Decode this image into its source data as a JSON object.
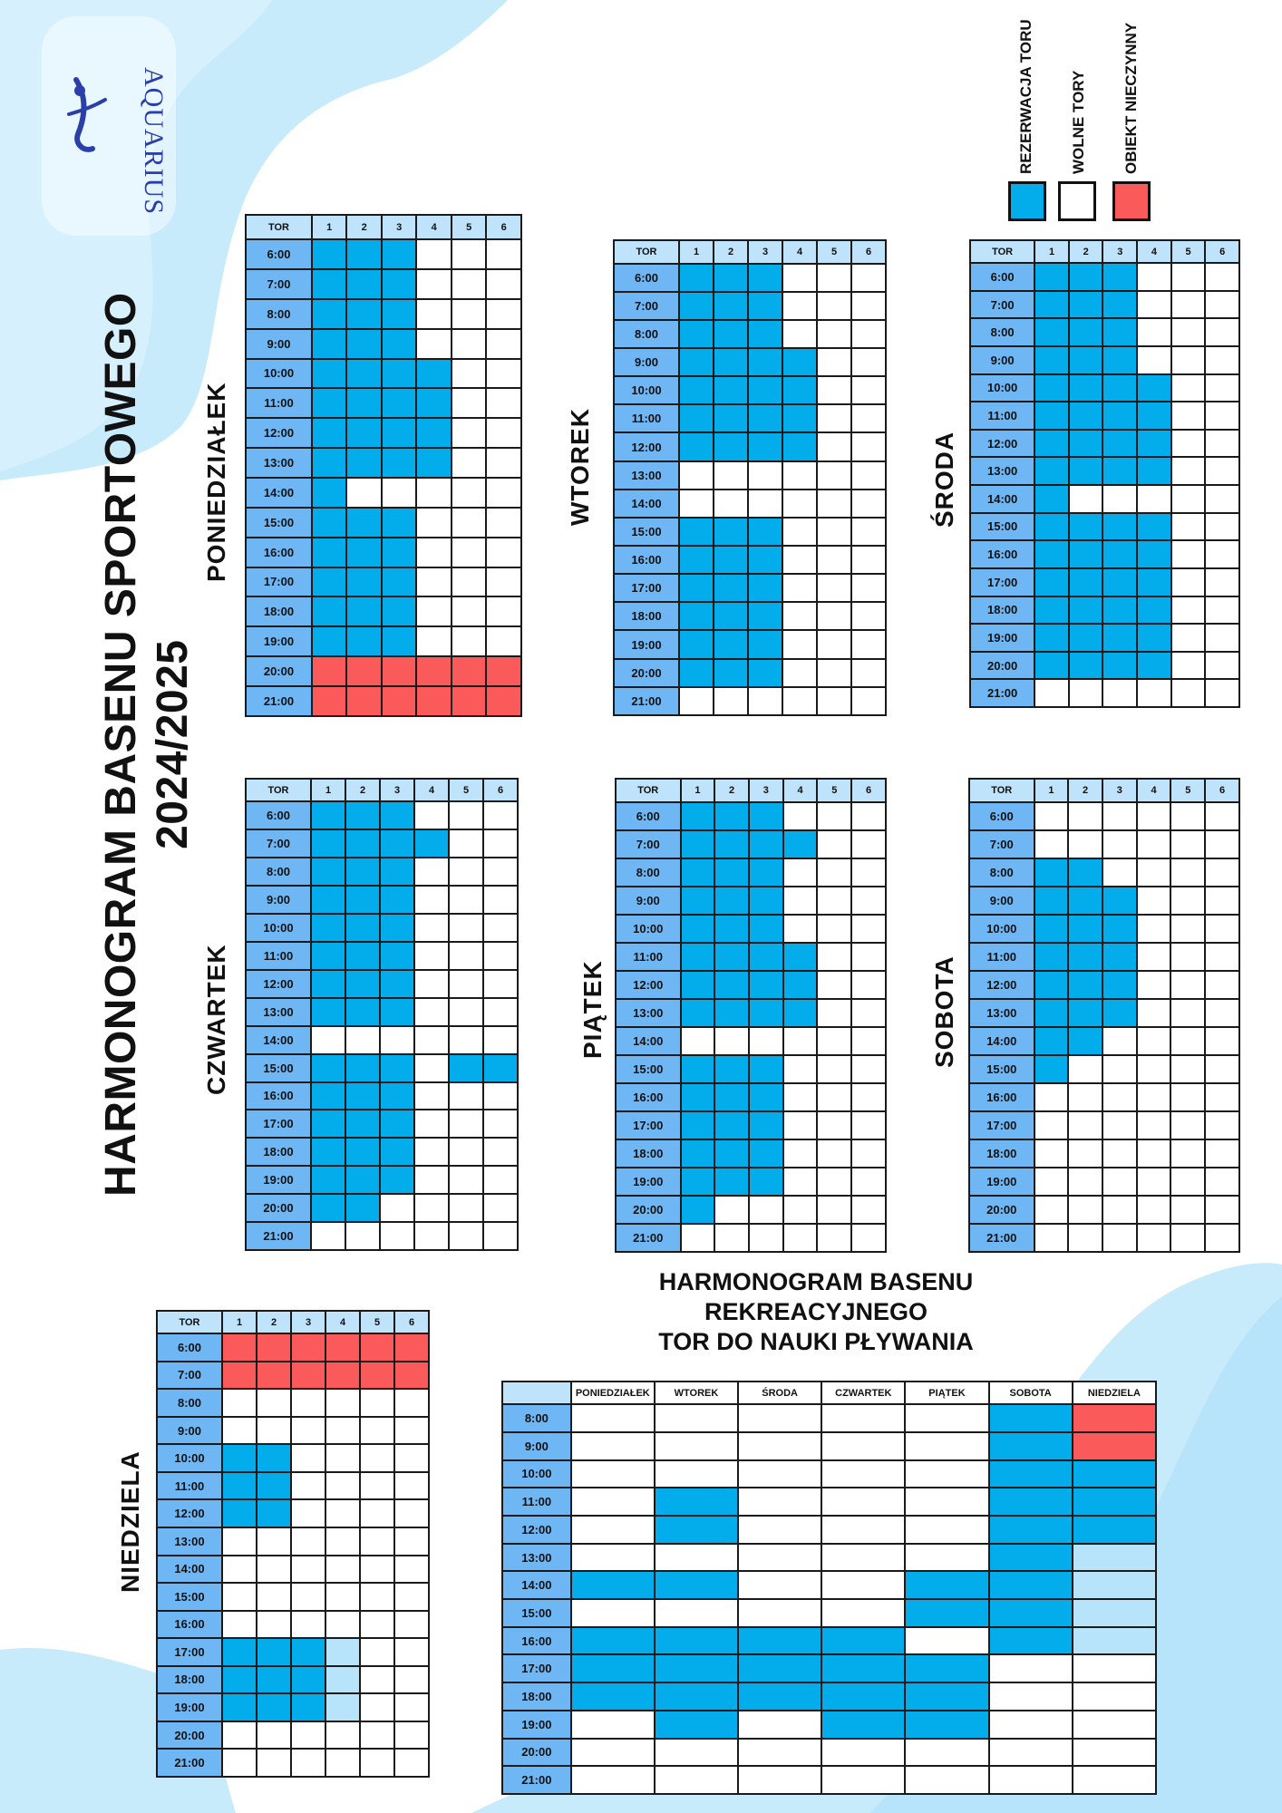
{
  "title": {
    "line1": "HARMONOGRAM  BASENU SPORTOWEGO",
    "line2": "2024/2025"
  },
  "logo": {
    "name": "AQUARIUS",
    "icon": "swimmer-icon"
  },
  "legend": [
    {
      "label": "REZERWACJA TORU",
      "color": "#03aceb"
    },
    {
      "label": "WOLNE TORY",
      "color": "#ffffff"
    },
    {
      "label": "OBIEKT NIECZYNNY",
      "color": "#fb5a5a"
    }
  ],
  "colors": {
    "reserved": "#03aceb",
    "free": "#ffffff",
    "closed": "#fb5a5a",
    "partial": "#b8e4fb",
    "header": "#bfe3fb",
    "time": "#6fb7f4"
  },
  "sport": {
    "header": [
      "TOR",
      "1",
      "2",
      "3",
      "4",
      "5",
      "6"
    ],
    "times": [
      "6:00",
      "7:00",
      "8:00",
      "9:00",
      "10:00",
      "11:00",
      "12:00",
      "13:00",
      "14:00",
      "15:00",
      "16:00",
      "17:00",
      "18:00",
      "19:00",
      "20:00",
      "21:00"
    ],
    "days": [
      {
        "name": "PONIEDZIAŁEK",
        "cells": [
          "111000",
          "111000",
          "111000",
          "111000",
          "111100",
          "111100",
          "111100",
          "111100",
          "100000",
          "111000",
          "111000",
          "111000",
          "111000",
          "111000",
          "222222",
          "222222"
        ]
      },
      {
        "name": "WTOREK",
        "cells": [
          "111000",
          "111000",
          "111000",
          "111100",
          "111100",
          "111100",
          "111100",
          "000000",
          "000000",
          "111000",
          "111000",
          "111000",
          "111000",
          "111000",
          "111000",
          "000000"
        ]
      },
      {
        "name": "ŚRODA",
        "cells": [
          "111000",
          "111000",
          "111000",
          "111000",
          "111100",
          "111100",
          "111100",
          "111100",
          "100000",
          "111100",
          "111100",
          "111100",
          "111100",
          "111100",
          "111100",
          "000000"
        ]
      },
      {
        "name": "CZWARTEK",
        "cells": [
          "111000",
          "111100",
          "111000",
          "111000",
          "111000",
          "111000",
          "111000",
          "111000",
          "000000",
          "111011",
          "111000",
          "111000",
          "111000",
          "111000",
          "110000",
          "000000"
        ]
      },
      {
        "name": "PIĄTEK",
        "cells": [
          "111000",
          "111100",
          "111000",
          "111000",
          "111000",
          "111100",
          "111100",
          "111100",
          "000000",
          "111000",
          "111000",
          "111000",
          "111000",
          "111000",
          "100000",
          "000000"
        ]
      },
      {
        "name": "SOBOTA",
        "cells": [
          "000000",
          "000000",
          "110000",
          "111000",
          "111000",
          "111000",
          "111000",
          "111000",
          "110000",
          "100000",
          "000000",
          "000000",
          "000000",
          "000000",
          "000000",
          "000000"
        ]
      },
      {
        "name": "NIEDZIELA",
        "cells": [
          "222222",
          "222222",
          "000000",
          "000000",
          "110000",
          "110000",
          "110000",
          "000000",
          "000000",
          "000000",
          "000000",
          "111300",
          "111300",
          "111300",
          "000000",
          "000000"
        ]
      }
    ]
  },
  "recreation": {
    "title": [
      "HARMONOGRAM BASENU",
      "REKREACYJNEGO",
      "TOR DO NAUKI PŁYWANIA"
    ],
    "corner": "",
    "days": [
      "PONIEDZIAŁEK",
      "WTOREK",
      "ŚRODA",
      "CZWARTEK",
      "PIĄTEK",
      "SOBOTA",
      "NIEDZIELA"
    ],
    "times": [
      "8:00",
      "9:00",
      "10:00",
      "11:00",
      "12:00",
      "13:00",
      "14:00",
      "15:00",
      "16:00",
      "17:00",
      "18:00",
      "19:00",
      "20:00",
      "21:00"
    ],
    "cells": [
      "0000012",
      "0000012",
      "0000011",
      "0100011",
      "0100011",
      "0000013",
      "1100113",
      "0000113",
      "1111013",
      "1111100",
      "1111100",
      "0101100",
      "0000000",
      "0000000"
    ]
  }
}
